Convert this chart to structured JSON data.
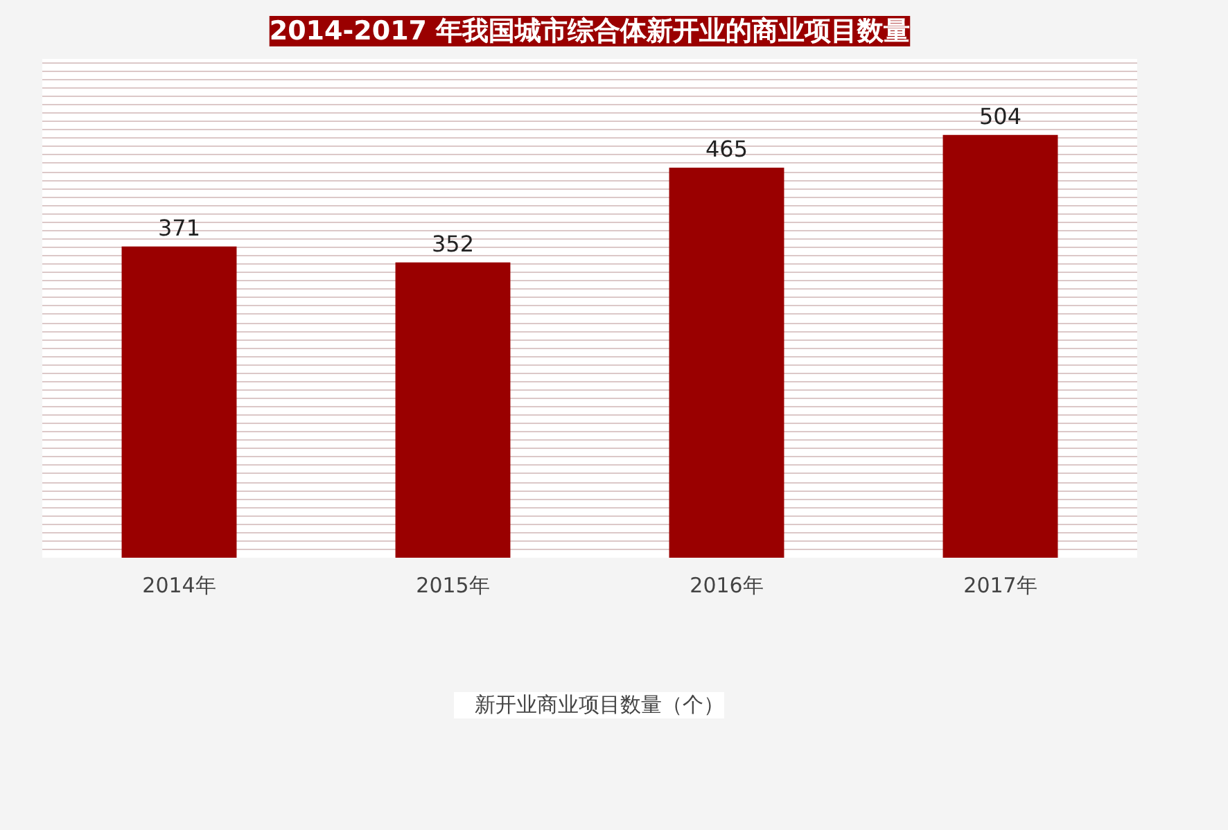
{
  "chart_data": {
    "type": "bar",
    "title": "2014-2017 年我国城市综合体新开业的商业项目数量",
    "categories": [
      "2014年",
      "2015年",
      "2016年",
      "2017年"
    ],
    "series": [
      {
        "name": "新开业商业项目数量（个）",
        "color": "#9a0000",
        "values": [
          371,
          352,
          465,
          504
        ]
      }
    ],
    "data_labels": true,
    "grid": "y",
    "tick_labels": "x",
    "legend": "bottom"
  }
}
